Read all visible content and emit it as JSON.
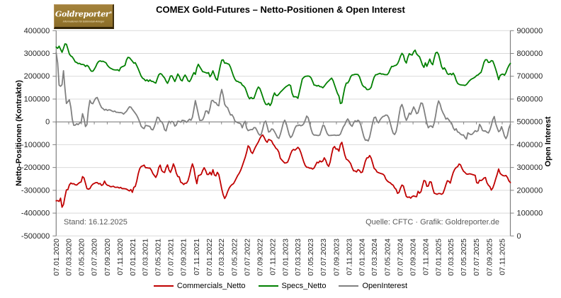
{
  "title": "COMEX Gold-Futures – Netto-Positionen & Open Interest",
  "logo": {
    "brand": "Goldreporter",
    "registered": "®",
    "tagline": "Informationen für Edelmetall-Anleger"
  },
  "footnotes": {
    "stand": "Stand: 16.12.2025",
    "source": "Quelle: CFTC · Grafik: Goldreporter.de"
  },
  "legend": [
    {
      "label": "Commercials_Netto",
      "color": "#C00000"
    },
    {
      "label": "Specs_Netto",
      "color": "#008000"
    },
    {
      "label": "OpenInterest",
      "color": "#808080"
    }
  ],
  "chart_data": {
    "type": "line",
    "title": "COMEX Gold-Futures – Netto-Positionen & Open Interest",
    "x_start_date": "07.01.2020",
    "x_end_date": "16.12.2025",
    "x_interval": "weekly",
    "x_tick_labels": [
      "07.01.2020",
      "07.03.2020",
      "07.05.2020",
      "07.07.2020",
      "07.09.2020",
      "07.11.2020",
      "07.01.2021",
      "07.03.2021",
      "07.05.2021",
      "07.07.2021",
      "07.09.2021",
      "07.11.2021",
      "07.01.2022",
      "07.03.2022",
      "07.05.2022",
      "07.07.2022",
      "07.09.2022",
      "07.11.2022",
      "07.01.2023",
      "07.03.2023",
      "07.05.2023",
      "07.07.2023",
      "07.09.2023",
      "07.11.2023",
      "07.01.2024",
      "07.03.2024",
      "07.05.2024",
      "07.07.2024",
      "07.09.2024",
      "07.11.2024",
      "07.01.2025",
      "07.03.2025",
      "07.05.2025",
      "07.07.2025",
      "07.09.2025",
      "07.11.2025"
    ],
    "left_axis": {
      "title": "Netto-Positionen (Kontrakte)",
      "min": -500000,
      "max": 400000,
      "step": 100000,
      "tick_labels": [
        "400000",
        "300000",
        "200000",
        "100000",
        "0",
        "-100000",
        "-200000",
        "-300000",
        "-400000",
        "-500000"
      ]
    },
    "right_axis": {
      "title": "Open Interest",
      "min": 0,
      "max": 900000,
      "step": 100000,
      "tick_labels": [
        "900000",
        "800000",
        "700000",
        "600000",
        "500000",
        "400000",
        "300000",
        "200000",
        "100000",
        "0"
      ]
    },
    "grid": true,
    "legend_position": "bottom",
    "series": [
      {
        "name": "Commercials_Netto",
        "axis": "left",
        "color": "#C00000",
        "values": [
          -346000,
          -345000,
          -349000,
          -334500,
          -374000,
          -362500,
          -328000,
          -298000,
          -297000,
          -276500,
          -268000,
          -271500,
          -271000,
          -275500,
          -277000,
          -271000,
          -266000,
          -263500,
          -240000,
          -246000,
          -269000,
          -292500,
          -295000,
          -292500,
          -280500,
          -273000,
          -269500,
          -266500,
          -266000,
          -272000,
          -270000,
          -278500,
          -275000,
          -259500,
          -272500,
          -278000,
          -279500,
          -284000,
          -284000,
          -282000,
          -286500,
          -287000,
          -286000,
          -290000,
          -287000,
          -292500,
          -292500,
          -293000,
          -294500,
          -299000,
          -302500,
          -296500,
          -309000,
          -287000,
          -283000,
          -259500,
          -228000,
          -205500,
          -195500,
          -193000,
          -189500,
          -201000,
          -201000,
          -202500,
          -202500,
          -212000,
          -226500,
          -235000,
          -243500,
          -229500,
          -200500,
          -189500,
          -213000,
          -219500,
          -222000,
          -201000,
          -188500,
          -211000,
          -221500,
          -206000,
          -184000,
          -199500,
          -225000,
          -239500,
          -241000,
          -264500,
          -267500,
          -274500,
          -269000,
          -268500,
          -257500,
          -234500,
          -205500,
          -184000,
          -204000,
          -243000,
          -271000,
          -236000,
          -233500,
          -230000,
          -213000,
          -201000,
          -213000,
          -230500,
          -230500,
          -220500,
          -232500,
          -209500,
          -232500,
          -237000,
          -221000,
          -231000,
          -261500,
          -294000,
          -320000,
          -336000,
          -324500,
          -306500,
          -291500,
          -281500,
          -275000,
          -271000,
          -259500,
          -246500,
          -234000,
          -224500,
          -211000,
          -193500,
          -174500,
          -156000,
          -133000,
          -105000,
          -112000,
          -131500,
          -138500,
          -124500,
          -110500,
          -99000,
          -88000,
          -73500,
          -62500,
          -57500,
          -68500,
          -82500,
          -89500,
          -77000,
          -79500,
          -83000,
          -96500,
          -105000,
          -116000,
          -121000,
          -133000,
          -159500,
          -167000,
          -174000,
          -180500,
          -179500,
          -176000,
          -160000,
          -140500,
          -126000,
          -120500,
          -124000,
          -118000,
          -111500,
          -118500,
          -134500,
          -155500,
          -175500,
          -191500,
          -199000,
          -199500,
          -203000,
          -202500,
          -207000,
          -202500,
          -190000,
          -177000,
          -179500,
          -171000,
          -175500,
          -171500,
          -157500,
          -168500,
          -187000,
          -195000,
          -176000,
          -142500,
          -115000,
          -108000,
          -119500,
          -118500,
          -128500,
          -99000,
          -89500,
          -117000,
          -145000,
          -163500,
          -167000,
          -174000,
          -183000,
          -201000,
          -214500,
          -215000,
          -219500,
          -209500,
          -213000,
          -222500,
          -220000,
          -198000,
          -173000,
          -158000,
          -157000,
          -147500,
          -159000,
          -181000,
          -203500,
          -209000,
          -219500,
          -222500,
          -225000,
          -227000,
          -229000,
          -235000,
          -251000,
          -259000,
          -264000,
          -267000,
          -273500,
          -277500,
          -289500,
          -295500,
          -313500,
          -309500,
          -290500,
          -277000,
          -281000,
          -305500,
          -327000,
          -331000,
          -329000,
          -334500,
          -327000,
          -324500,
          -327000,
          -328000,
          -304500,
          -312500,
          -306000,
          -280500,
          -257000,
          -259500,
          -282500,
          -281500,
          -262500,
          -264000,
          -291000,
          -312500,
          -315000,
          -317500,
          -314000,
          -314000,
          -317500,
          -313500,
          -296500,
          -275500,
          -258000,
          -260500,
          -268500,
          -243000,
          -222000,
          -208000,
          -200000,
          -196500,
          -184500,
          -188500,
          -204000,
          -216000,
          -221500,
          -228500,
          -229500,
          -227500,
          -228500,
          -230500,
          -232500,
          -234500,
          -266500,
          -269000,
          -255500,
          -257500,
          -253500,
          -246000,
          -244000,
          -266500,
          -277500,
          -283500,
          -299000,
          -290000,
          -272000,
          -250000,
          -230000,
          -206500,
          -225500,
          -231500,
          -235500,
          -237000,
          -235000,
          -243500,
          -258500,
          -266000
        ]
      },
      {
        "name": "Specs_Netto",
        "axis": "left",
        "color": "#008000",
        "values": [
          328000,
          322500,
          332000,
          318500,
          305000,
          322500,
          342000,
          340500,
          319500,
          297500,
          289000,
          285000,
          275000,
          263000,
          260500,
          255500,
          256500,
          252000,
          252000,
          250500,
          243000,
          248000,
          243500,
          231500,
          222000,
          222000,
          230500,
          242000,
          256500,
          265000,
          267500,
          265000,
          266000,
          262500,
          259000,
          248000,
          240500,
          235500,
          232500,
          229000,
          228000,
          227500,
          228500,
          223500,
          237500,
          242000,
          244000,
          248000,
          271500,
          283000,
          281500,
          274000,
          266000,
          257500,
          259500,
          246500,
          232500,
          216500,
          200500,
          191500,
          187500,
          180000,
          184500,
          177500,
          184000,
          178000,
          177500,
          173000,
          170000,
          189000,
          206500,
          212000,
          209000,
          200000,
          192500,
          178500,
          169000,
          183000,
          201000,
          202000,
          189500,
          177000,
          192000,
          210000,
          200500,
          184500,
          179500,
          196000,
          205500,
          195000,
          180500,
          176500,
          187000,
          203000,
          216000,
          208500,
          237000,
          252500,
          241500,
          231000,
          220000,
          218500,
          216000,
          213500,
          216000,
          198000,
          207500,
          224000,
          206500,
          189000,
          183000,
          214000,
          246000,
          270500,
          272000,
          257500,
          258000,
          255000,
          252500,
          239500,
          220500,
          201500,
          187000,
          178500,
          177500,
          173000,
          172000,
          161500,
          157000,
          149000,
          131000,
          112000,
          101000,
          107500,
          102000,
          103500,
          122000,
          141000,
          153000,
          146500,
          129500,
          110000,
          91000,
          77500,
          75500,
          82000,
          71500,
          83000,
          110000,
          127000,
          116500,
          115000,
          122000,
          130000,
          136500,
          143000,
          149500,
          155000,
          159000,
          163000,
          159000,
          126500,
          110000,
          110500,
          109500,
          103500,
          131500,
          159500,
          188000,
          195000,
          199500,
          200500,
          201000,
          199500,
          192500,
          178000,
          161500,
          160500,
          157000,
          160000,
          154500,
          154000,
          149500,
          156500,
          165500,
          173500,
          179500,
          186000,
          192000,
          181000,
          162000,
          143000,
          125000,
          113000,
          80500,
          83500,
          118000,
          150000,
          170000,
          170500,
          181000,
          198000,
          205500,
          206500,
          208500,
          208500,
          207500,
          198000,
          179000,
          161500,
          154000,
          151500,
          142000,
          141500,
          144000,
          152000,
          175500,
          195500,
          206500,
          207500,
          210500,
          213000,
          209500,
          210000,
          207500,
          207000,
          207000,
          215500,
          231000,
          243500,
          243000,
          246500,
          248000,
          254500,
          269000,
          288000,
          300500,
          293000,
          268000,
          258000,
          282500,
          299000,
          294500,
          293000,
          307500,
          314500,
          298000,
          291000,
          285500,
          268500,
          249500,
          239000,
          259000,
          243500,
          258500,
          275500,
          258500,
          250500,
          278500,
          302000,
          305500,
          295500,
          270500,
          243000,
          231000,
          237000,
          226000,
          211000,
          208000,
          212000,
          206500,
          213500,
          202500,
          182000,
          169000,
          164500,
          162500,
          161500,
          161000,
          159500,
          163500,
          171500,
          179500,
          185500,
          189500,
          192500,
          197000,
          203500,
          206000,
          212500,
          217000,
          237500,
          261500,
          272500,
          272500,
          260500,
          261500,
          268500,
          267000,
          250500,
          231000,
          209500,
          185000,
          203500,
          208000,
          209500,
          204500,
          216000,
          233500,
          247000,
          256500
        ]
      },
      {
        "name": "OpenInterest",
        "axis": "right",
        "color": "#808080",
        "values": [
          803500,
          759500,
          661000,
          656000,
          663000,
          724500,
          646000,
          580500,
          589000,
          597000,
          564500,
          511000,
          485000,
          485500,
          492000,
          488000,
          495000,
          496500,
          536000,
          513500,
          479500,
          488500,
          554000,
          594500,
          582000,
          579500,
          593000,
          604000,
          607000,
          591500,
          575500,
          562500,
          558000,
          551500,
          555000,
          550000,
          553000,
          552000,
          548000,
          545000,
          547500,
          542000,
          542000,
          540500,
          541000,
          539500,
          534000,
          540500,
          546500,
          557000,
          566000,
          564500,
          555000,
          546500,
          538000,
          528500,
          515500,
          499500,
          481000,
          474000,
          470500,
          484500,
          483500,
          481500,
          479500,
          467000,
          465000,
          479000,
          499000,
          520500,
          518000,
          504000,
          500500,
          489000,
          465500,
          460500,
          484500,
          502500,
          497500,
          502000,
          498500,
          481500,
          486500,
          503000,
          502000,
          498500,
          507000,
          506000,
          504000,
          498000,
          505000,
          512000,
          507000,
          520500,
          555500,
          593500,
          565000,
          535000,
          506500,
          506500,
          509000,
          524000,
          547500,
          548000,
          536000,
          559500,
          592500,
          594000,
          585500,
          584500,
          574000,
          570500,
          615000,
          642000,
          615500,
          577500,
          567000,
          562500,
          545500,
          530000,
          531500,
          521000,
          503500,
          499500,
          496000,
          494500,
          491000,
          474000,
          492500,
          502500,
          472500,
          461500,
          464500,
          466500,
          466000,
          475000,
          474500,
          463000,
          449000,
          441500,
          446000,
          470000,
          497500,
          503500,
          481500,
          455500,
          458000,
          469000,
          467500,
          457500,
          445500,
          432000,
          427500,
          445500,
          469000,
          495000,
          507500,
          493500,
          468500,
          444500,
          431000,
          438000,
          454500,
          473000,
          483500,
          483500,
          486500,
          483000,
          485000,
          492000,
          507500,
          525500,
          518000,
          493500,
          468000,
          448500,
          442000,
          442500,
          441000,
          440000,
          443000,
          463000,
          484500,
          483000,
          465000,
          448500,
          440500,
          440500,
          441000,
          441500,
          442500,
          440500,
          441500,
          441000,
          446500,
          463000,
          478500,
          488000,
          503500,
          513000,
          502500,
          486500,
          480500,
          495000,
          505000,
          501000,
          507500,
          502000,
          485000,
          459500,
          435000,
          420000,
          420500,
          416500,
          434500,
          464500,
          495500,
          518500,
          521000,
          504000,
          495500,
          508000,
          517000,
          523500,
          525500,
          530000,
          529000,
          518500,
          496000,
          470500,
          450500,
          444500,
          457000,
          487500,
          528500,
          564500,
          576500,
          557500,
          524000,
          506500,
          520000,
          538500,
          533000,
          549000,
          565500,
          553000,
          536000,
          540000,
          562500,
          583000,
          581000,
          556000,
          524000,
          493500,
          474000,
          481500,
          482000,
          475500,
          494500,
          528000,
          567500,
          592000,
          578500,
          555000,
          540000,
          528000,
          512000,
          516500,
          509000,
          500000,
          493000,
          474000,
          463500,
          470000,
          456000,
          453500,
          446000,
          442500,
          443000,
          432000,
          425000,
          452000,
          447500,
          444500,
          446000,
          453500,
          461500,
          457500,
          461500,
          489500,
          478500,
          462000,
          460000,
          460500,
          454500,
          451500,
          464000,
          484500,
          510000,
          523500,
          492500,
          473500,
          457000,
          462000,
          479000,
          460000,
          437500,
          426500,
          441000,
          472000,
          488500
        ]
      }
    ]
  },
  "colors": {
    "grid": "#D9D9D9",
    "axis": "#808080",
    "tick_label": "#262626",
    "footnote": "#595959",
    "logo_gold": "#9A7B33",
    "background": "#FFFFFF"
  }
}
